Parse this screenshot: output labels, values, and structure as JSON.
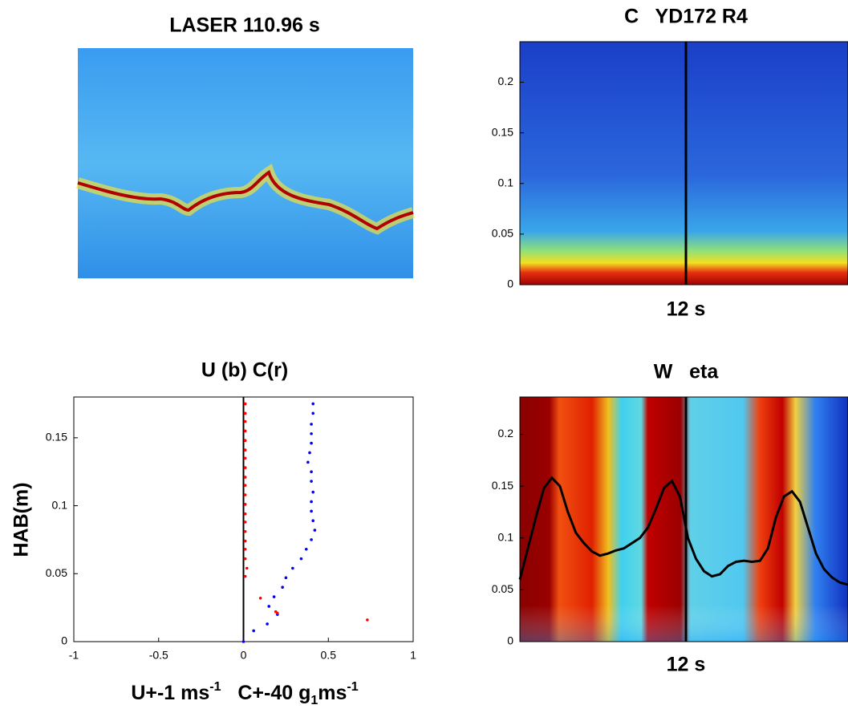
{
  "chart_data": [
    {
      "type": "image",
      "title": "LASER 110.96 s"
    },
    {
      "type": "heatmap",
      "title": "C   YD172 R4",
      "xlabel": "12 s",
      "ylim": [
        0,
        0.24
      ],
      "yticks": [
        0,
        0.05,
        0.1,
        0.15,
        0.2
      ]
    },
    {
      "type": "scatter",
      "title": "U (b) C(r)",
      "ylabel": "HAB(m)",
      "xlabel": [
        {
          "text": "U+-1 ms"
        },
        {
          "text": "-1",
          "shift": "super"
        },
        {
          "text": "   C+-40 g"
        },
        {
          "text": "1",
          "shift": "sub"
        },
        {
          "text": "ms"
        },
        {
          "text": "-1",
          "shift": "super"
        }
      ],
      "xlim": [
        -1,
        1
      ],
      "xticks": [
        -1,
        -0.5,
        0,
        0.5,
        1
      ],
      "ylim": [
        0,
        0.18
      ],
      "yticks": [
        0,
        0.05,
        0.1,
        0.15
      ],
      "vline": 0,
      "series": [
        {
          "color": "#0000ff",
          "x": [
            0.41,
            0.41,
            0.4,
            0.4,
            0.4,
            0.39,
            0.38,
            0.4,
            0.4,
            0.41,
            0.4,
            0.4,
            0.41,
            0.42,
            0.4,
            0.37,
            0.34,
            0.29,
            0.25,
            0.23,
            0.18,
            0.15,
            0.2,
            0.14,
            0.06,
            0.0
          ],
          "y": [
            0.175,
            0.168,
            0.16,
            0.153,
            0.146,
            0.139,
            0.132,
            0.125,
            0.118,
            0.11,
            0.103,
            0.096,
            0.089,
            0.082,
            0.075,
            0.068,
            0.061,
            0.054,
            0.047,
            0.04,
            0.033,
            0.026,
            0.02,
            0.013,
            0.008,
            0.0
          ]
        },
        {
          "color": "#ff0000",
          "x": [
            0.01,
            0.01,
            0.01,
            0.01,
            0.01,
            0.01,
            0.01,
            0.01,
            0.01,
            0.01,
            0.01,
            0.01,
            0.01,
            0.01,
            0.01,
            0.01,
            0.01,
            0.01,
            0.02,
            0.01,
            0.1,
            0.19,
            0.2,
            0.73
          ],
          "y": [
            0.175,
            0.168,
            0.162,
            0.155,
            0.148,
            0.141,
            0.135,
            0.128,
            0.121,
            0.115,
            0.108,
            0.101,
            0.094,
            0.088,
            0.081,
            0.074,
            0.068,
            0.061,
            0.054,
            0.048,
            0.032,
            0.022,
            0.021,
            0.016
          ]
        }
      ]
    },
    {
      "type": "heatmap",
      "title": "W   eta",
      "xlabel": "12 s",
      "ylim": [
        0,
        0.236
      ],
      "yticks": [
        0,
        0.05,
        0.1,
        0.15,
        0.2
      ],
      "series": [
        {
          "color": "#000000",
          "values": [
            0.06,
            0.09,
            0.12,
            0.148,
            0.158,
            0.15,
            0.125,
            0.105,
            0.095,
            0.087,
            0.083,
            0.085,
            0.088,
            0.09,
            0.095,
            0.1,
            0.11,
            0.128,
            0.148,
            0.155,
            0.14,
            0.1,
            0.08,
            0.068,
            0.063,
            0.065,
            0.073,
            0.077,
            0.078,
            0.077,
            0.078,
            0.09,
            0.12,
            0.14,
            0.145,
            0.135,
            0.11,
            0.085,
            0.07,
            0.062,
            0.057,
            0.055
          ]
        }
      ]
    }
  ]
}
